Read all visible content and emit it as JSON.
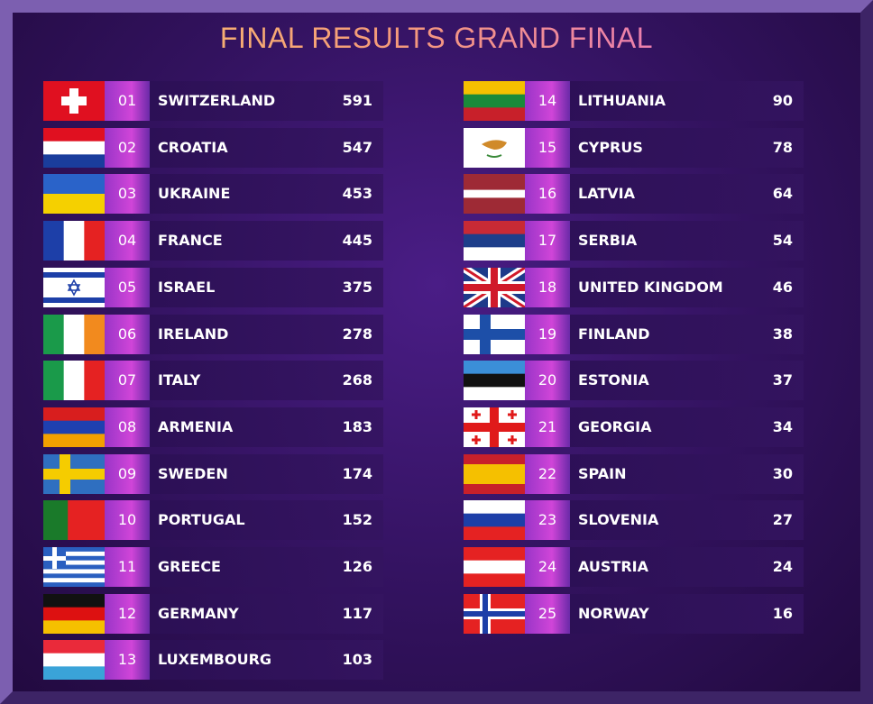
{
  "title": "FINAL RESULTS GRAND FINAL",
  "rows": [
    {
      "rank": "01",
      "country": "SWITZERLAND",
      "points": 591
    },
    {
      "rank": "02",
      "country": "CROATIA",
      "points": 547
    },
    {
      "rank": "03",
      "country": "UKRAINE",
      "points": 453
    },
    {
      "rank": "04",
      "country": "FRANCE",
      "points": 445
    },
    {
      "rank": "05",
      "country": "ISRAEL",
      "points": 375
    },
    {
      "rank": "06",
      "country": "IRELAND",
      "points": 278
    },
    {
      "rank": "07",
      "country": "ITALY",
      "points": 268
    },
    {
      "rank": "08",
      "country": "ARMENIA",
      "points": 183
    },
    {
      "rank": "09",
      "country": "SWEDEN",
      "points": 174
    },
    {
      "rank": "10",
      "country": "PORTUGAL",
      "points": 152
    },
    {
      "rank": "11",
      "country": "GREECE",
      "points": 126
    },
    {
      "rank": "12",
      "country": "GERMANY",
      "points": 117
    },
    {
      "rank": "13",
      "country": "LUXEMBOURG",
      "points": 103
    },
    {
      "rank": "14",
      "country": "LITHUANIA",
      "points": 90
    },
    {
      "rank": "15",
      "country": "CYPRUS",
      "points": 78
    },
    {
      "rank": "16",
      "country": "LATVIA",
      "points": 64
    },
    {
      "rank": "17",
      "country": "SERBIA",
      "points": 54
    },
    {
      "rank": "18",
      "country": "UNITED KINGDOM",
      "points": 46
    },
    {
      "rank": "19",
      "country": "FINLAND",
      "points": 38
    },
    {
      "rank": "20",
      "country": "ESTONIA",
      "points": 37
    },
    {
      "rank": "21",
      "country": "GEORGIA",
      "points": 34
    },
    {
      "rank": "22",
      "country": "SPAIN",
      "points": 30
    },
    {
      "rank": "23",
      "country": "SLOVENIA",
      "points": 27
    },
    {
      "rank": "24",
      "country": "AUSTRIA",
      "points": 24
    },
    {
      "rank": "25",
      "country": "NORWAY",
      "points": 16
    }
  ]
}
